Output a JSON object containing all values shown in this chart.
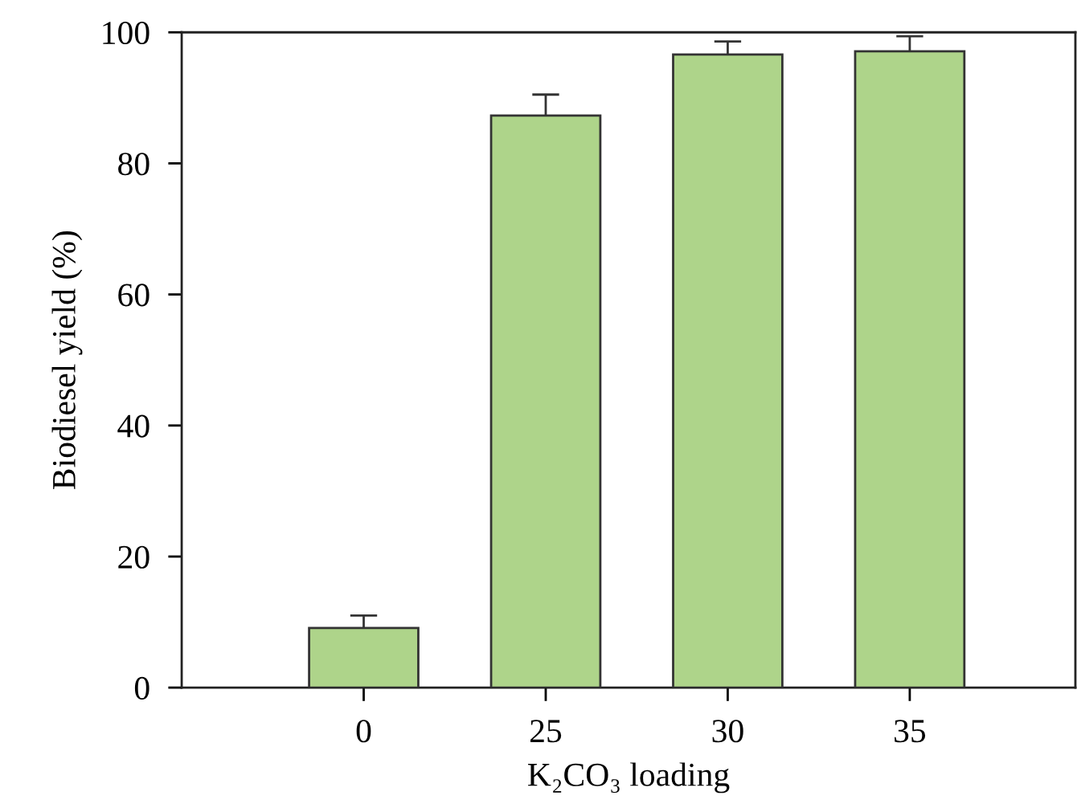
{
  "chart_data": {
    "type": "bar",
    "xlabel": "K₂CO₃ loading",
    "ylabel": "Biodiesel yield (%)",
    "categories": [
      "0",
      "25",
      "30",
      "35"
    ],
    "values": [
      9.1,
      87.3,
      96.6,
      97.1
    ],
    "errors": [
      1.9,
      3.2,
      2.0,
      2.3
    ],
    "color": "#aed48a",
    "ylim": [
      0,
      100
    ],
    "yticks": [
      0,
      20,
      40,
      60,
      80,
      100
    ],
    "grid": false
  }
}
